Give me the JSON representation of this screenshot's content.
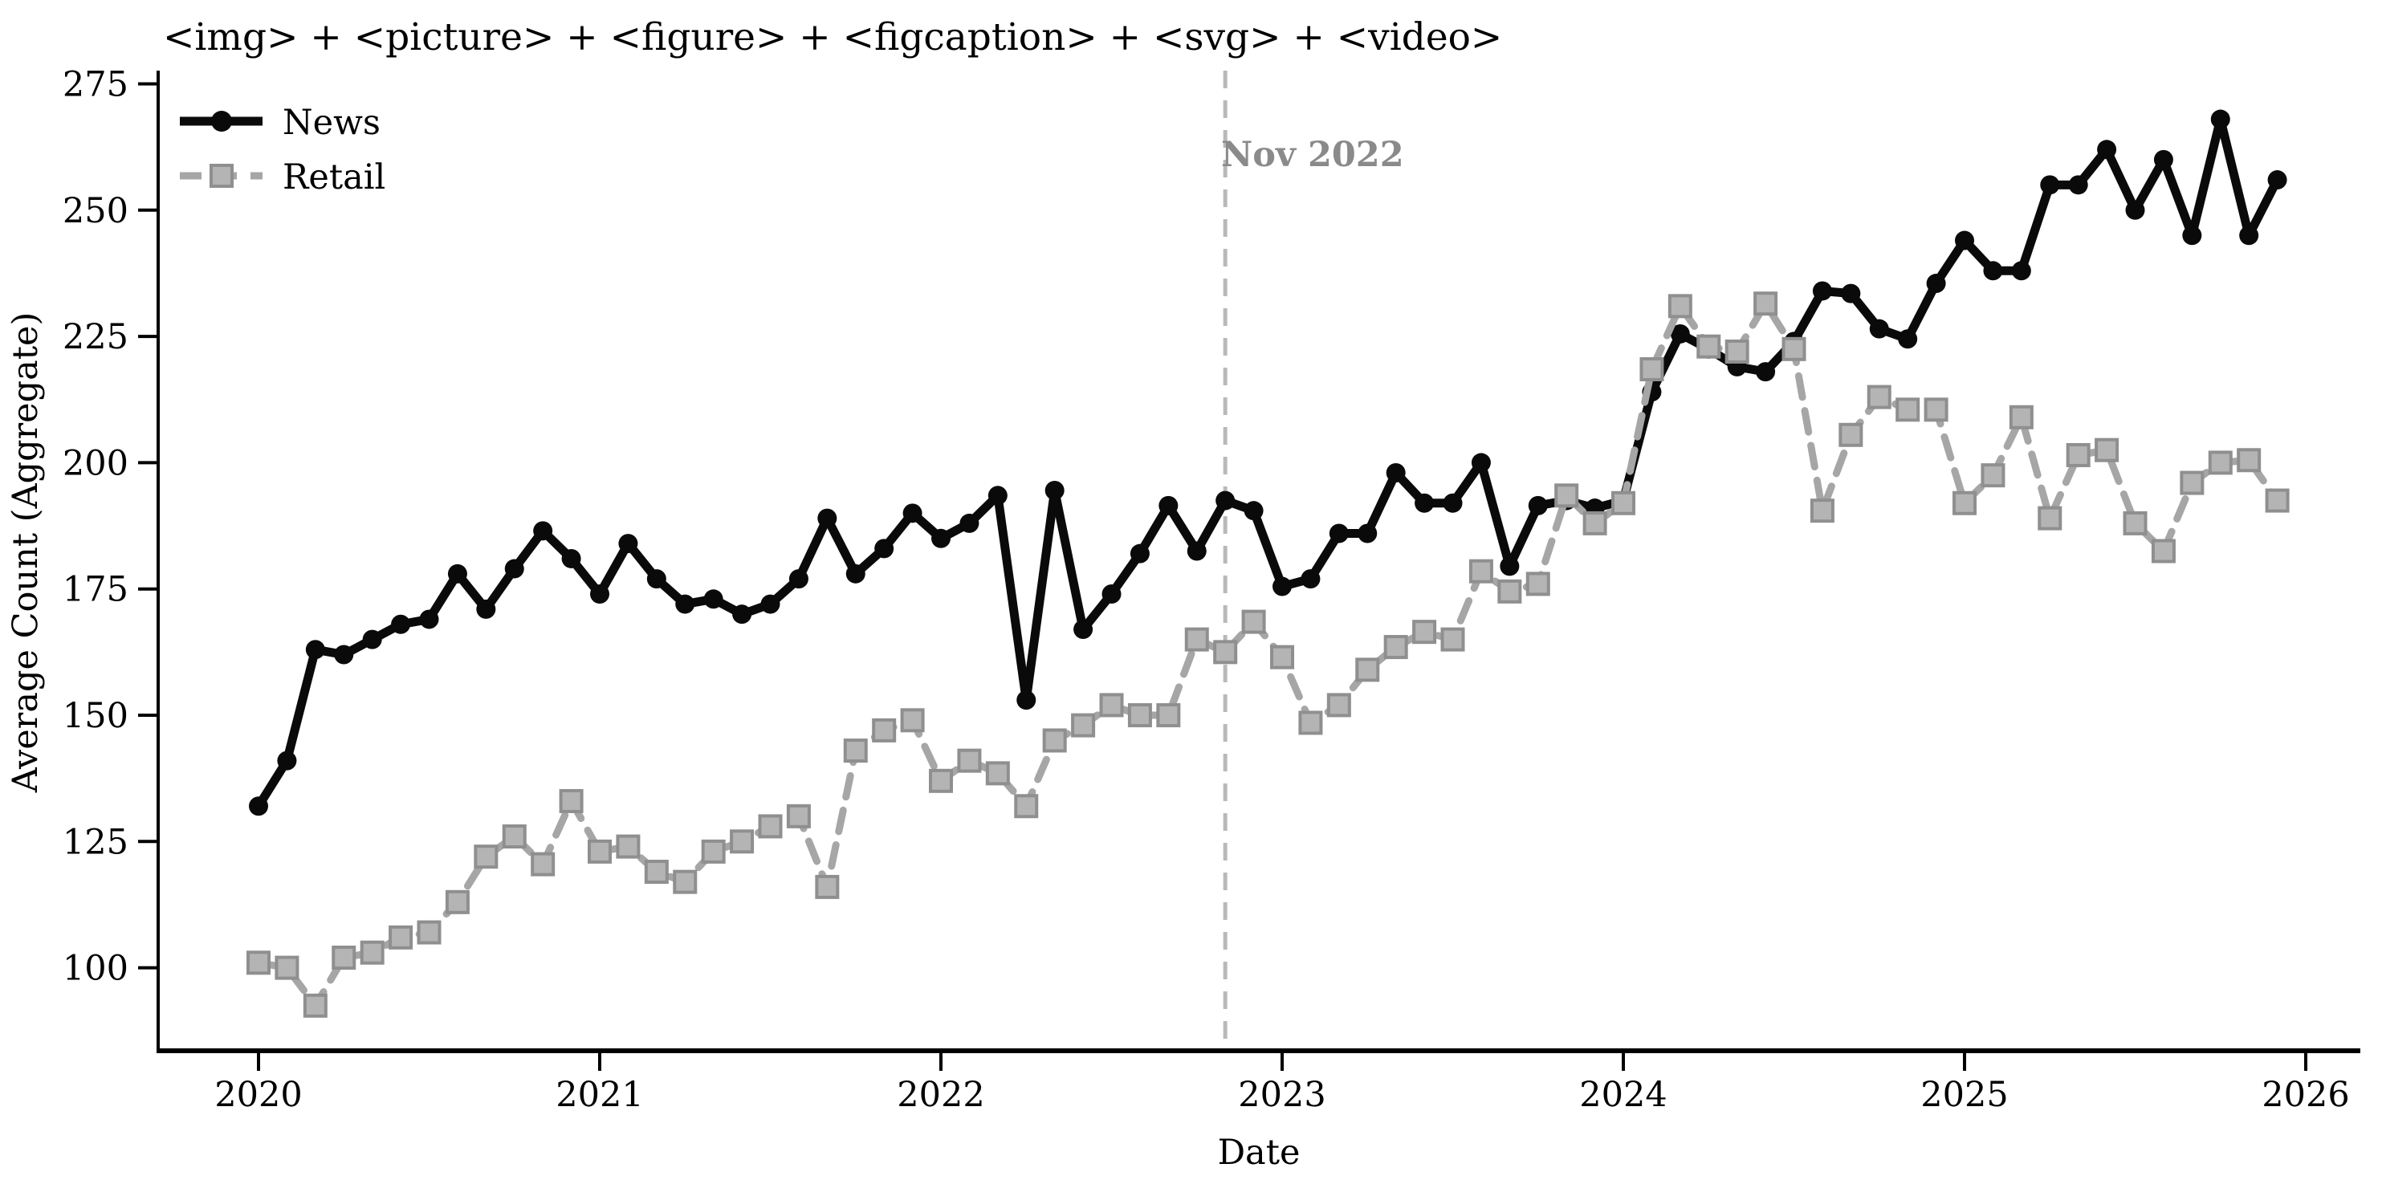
{
  "chart_data": {
    "type": "line",
    "title": "<img> + <picture> + <figure> + <figcaption> + <svg> + <video>",
    "xlabel": "Date",
    "ylabel": "Average Count (Aggregate)",
    "x_tick_labels": [
      "2020",
      "2021",
      "2022",
      "2023",
      "2024",
      "2025",
      "2026"
    ],
    "y_ticks": [
      100,
      125,
      150,
      175,
      200,
      225,
      250,
      275
    ],
    "ylim": [
      83.5,
      278
    ],
    "x_start_month": "2020-01",
    "x_end_month": "2025-12",
    "months_per_point": 1,
    "grid": false,
    "legend_position": "upper left",
    "series": [
      {
        "name": "News",
        "color": "#0a0a0a",
        "style": "solid",
        "marker": "circle",
        "values": [
          132,
          141,
          163,
          162,
          165,
          168,
          169,
          178,
          171,
          179,
          186.5,
          181,
          174,
          184,
          177,
          172,
          173,
          170,
          172,
          177,
          189,
          178,
          183,
          190,
          185,
          188,
          193.5,
          153,
          194.5,
          167,
          174,
          182,
          191.5,
          182.5,
          192.5,
          190.5,
          175.5,
          177,
          186,
          186,
          198,
          192,
          192,
          200,
          179.5,
          191.5,
          192.5,
          191,
          192.5,
          214,
          225.5,
          222.5,
          219,
          218,
          224,
          234,
          233.5,
          226.5,
          224.5,
          235.5,
          244,
          238,
          238,
          255,
          255,
          262,
          250,
          260,
          245,
          268,
          245,
          256
        ]
      },
      {
        "name": "Retail",
        "color": "#a6a6a6",
        "style": "dashed",
        "marker": "square",
        "marker_fill": "#b4b4b4",
        "marker_edge": "#8f8f8f",
        "values": [
          101,
          100,
          92.5,
          102,
          103,
          106,
          107,
          113,
          122,
          126,
          120.5,
          133,
          123,
          124,
          119,
          117,
          123,
          125,
          128,
          130,
          116,
          143,
          147,
          149,
          137,
          141,
          138.5,
          132,
          145,
          148,
          152,
          150,
          150,
          165,
          162.5,
          168.5,
          161.5,
          148.5,
          152,
          159,
          163.5,
          166.5,
          165,
          178.5,
          174.5,
          176,
          193.5,
          188,
          192,
          218.5,
          231,
          223,
          222,
          231.5,
          222.5,
          190.5,
          205.5,
          213,
          210.5,
          210.5,
          192,
          197.5,
          209,
          189,
          201.5,
          202.5,
          188,
          182.5,
          196,
          200,
          200.5,
          192.5
        ]
      }
    ],
    "annotation": {
      "label": "Nov 2022",
      "month_index": 34,
      "line_color": "#b9b9b9",
      "text_color": "#8a8a8a"
    }
  },
  "legend": {
    "items": [
      {
        "label": "News"
      },
      {
        "label": "Retail"
      }
    ]
  }
}
